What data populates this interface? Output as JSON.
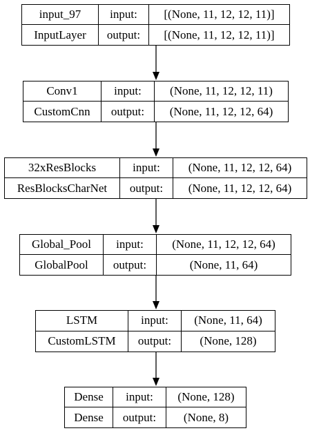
{
  "nodes": [
    {
      "name": "input_97",
      "class": "InputLayer",
      "input_label": "input:",
      "output_label": "output:",
      "input_shape": "[(None, 11, 12, 12, 11)]",
      "output_shape": "[(None, 11, 12, 12, 11)]"
    },
    {
      "name": "Conv1",
      "class": "CustomCnn",
      "input_label": "input:",
      "output_label": "output:",
      "input_shape": "(None, 11, 12, 12, 11)",
      "output_shape": "(None, 11, 12, 12, 64)"
    },
    {
      "name": "32xResBlocks",
      "class": "ResBlocksCharNet",
      "input_label": "input:",
      "output_label": "output:",
      "input_shape": "(None, 11, 12, 12, 64)",
      "output_shape": "(None, 11, 12, 12, 64)"
    },
    {
      "name": "Global_Pool",
      "class": "GlobalPool",
      "input_label": "input:",
      "output_label": "output:",
      "input_shape": "(None, 11, 12, 12, 64)",
      "output_shape": "(None, 11, 64)"
    },
    {
      "name": "LSTM",
      "class": "CustomLSTM",
      "input_label": "input:",
      "output_label": "output:",
      "input_shape": "(None, 11, 64)",
      "output_shape": "(None, 128)"
    },
    {
      "name": "Dense",
      "class": "Dense",
      "input_label": "input:",
      "output_label": "output:",
      "input_shape": "(None, 128)",
      "output_shape": "(None, 8)"
    }
  ]
}
